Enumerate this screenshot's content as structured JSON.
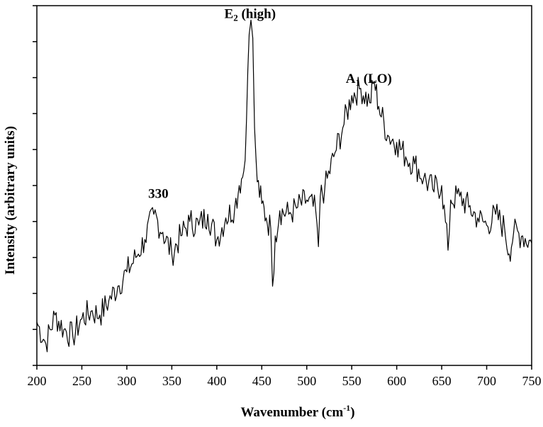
{
  "chart_data": {
    "type": "line",
    "xlabel_main": "Wavenumber (cm",
    "xlabel_sup": "-1",
    "xlabel_end": ")",
    "ylabel": "Intensity (arbitrary units)",
    "xlim": [
      200,
      750
    ],
    "ylim": [
      0,
      100
    ],
    "x_ticks": [
      200,
      250,
      300,
      350,
      400,
      450,
      500,
      550,
      600,
      650,
      700,
      750
    ],
    "y_tick_count": 11,
    "grid": false,
    "annotations": [
      {
        "main": "330",
        "sub": "",
        "rest": "",
        "x": 335,
        "y": 45
      },
      {
        "main": "E",
        "sub": "2",
        "rest": " (high)",
        "x": 437,
        "y": 95
      },
      {
        "main": "A",
        "sub": "1",
        "rest": " (LO)",
        "x": 569,
        "y": 77
      }
    ],
    "series": [
      {
        "x": [
          200,
          210,
          220,
          230,
          240,
          250,
          260,
          270,
          280,
          290,
          300,
          310,
          320,
          330,
          340,
          350,
          360,
          370,
          380,
          390,
          400,
          410,
          420,
          425,
          430,
          433,
          436,
          438,
          440,
          442,
          445,
          450,
          455,
          460,
          462,
          465,
          470,
          480,
          490,
          500,
          510,
          513,
          515,
          520,
          530,
          540,
          550,
          560,
          570,
          575,
          580,
          590,
          600,
          610,
          620,
          630,
          640,
          650,
          657,
          660,
          670,
          680,
          690,
          700,
          710,
          720,
          725,
          730,
          740,
          750
        ],
        "y": [
          12,
          6,
          14,
          10,
          8,
          13,
          15,
          14,
          18,
          22,
          26,
          30,
          35,
          42,
          37,
          31,
          36,
          40,
          39,
          42,
          35,
          41,
          44,
          50,
          54,
          68,
          92,
          96,
          91,
          66,
          51,
          45,
          41,
          38,
          22,
          36,
          43,
          42,
          44,
          46,
          43,
          33,
          47,
          49,
          58,
          66,
          75,
          77,
          73,
          79,
          72,
          64,
          62,
          58,
          56,
          52,
          49,
          50,
          32,
          46,
          47,
          44,
          41,
          39,
          42,
          38,
          31,
          37,
          36,
          34
        ]
      }
    ]
  }
}
